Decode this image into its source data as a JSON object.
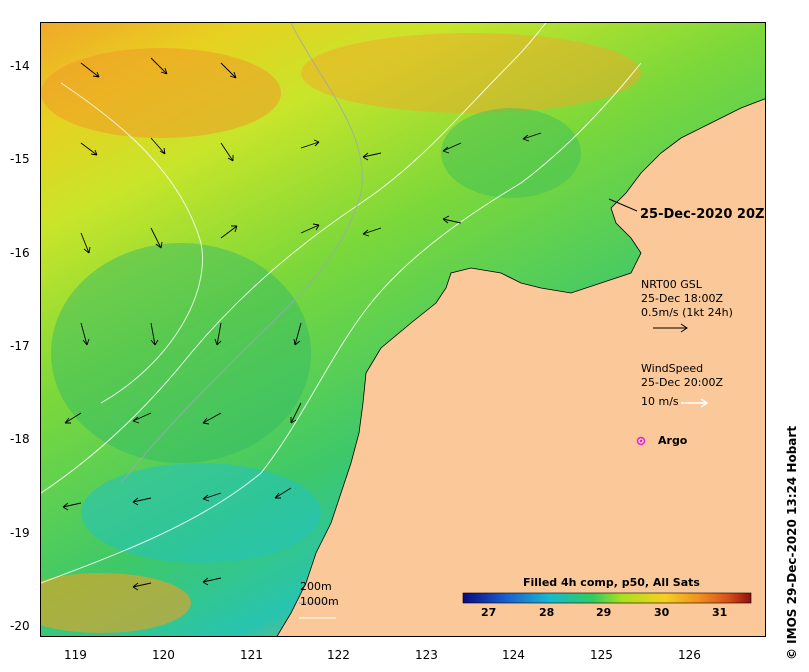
{
  "map": {
    "x_axis_ticks": [
      "119",
      "120",
      "121",
      "122",
      "123",
      "124",
      "125",
      "126"
    ],
    "y_axis_ticks": [
      "-14",
      "-15",
      "-16",
      "-17",
      "-18",
      "-19",
      "-20"
    ],
    "land_color": "#fbc89a",
    "ocean_palette": [
      "#2a3aa8",
      "#1a77c9",
      "#17c2c4",
      "#6fd43c",
      "#d8e61e",
      "#f5b521",
      "#e87a18",
      "#c8501a",
      "#9a2b12"
    ]
  },
  "annotations": {
    "date_label": "25-Dec-2020 20Z",
    "gsl_title": "NRT00 GSL",
    "gsl_time": "25-Dec 18:00Z",
    "gsl_scale": "0.5m/s (1kt 24h)",
    "wind_title": "WindSpeed",
    "wind_time": "25-Dec 20:00Z",
    "wind_scale": "10 m/s",
    "argo_label": "Argo",
    "contour_label_1": "200m",
    "contour_label_2": "1000m"
  },
  "colorbar": {
    "title": "Filled 4h comp, p50, All Sats",
    "ticks": [
      "27",
      "28",
      "29",
      "30",
      "31"
    ]
  },
  "credit": "© IMOS 29-Dec-2020 13:24 Hobart"
}
